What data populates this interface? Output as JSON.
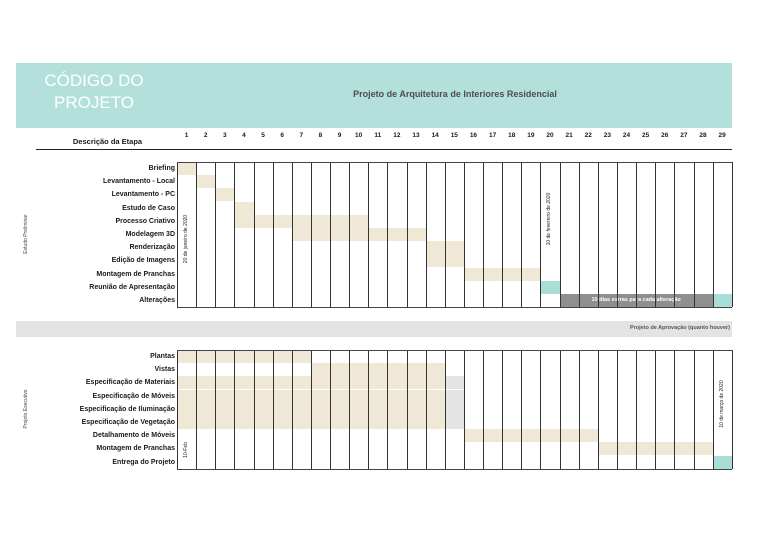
{
  "header": {
    "code_title": "CÓDIGO DO PROJETO",
    "project_title": "Projeto de Arquitetura de Interiores Residencial"
  },
  "columns": {
    "description_header": "Descrição da Etapa",
    "days": [
      "1",
      "2",
      "3",
      "4",
      "5",
      "6",
      "7",
      "8",
      "9",
      "10",
      "11",
      "12",
      "13",
      "14",
      "15",
      "16",
      "17",
      "18",
      "19",
      "20",
      "21",
      "22",
      "23",
      "24",
      "25",
      "26",
      "27",
      "28",
      "29"
    ]
  },
  "colors": {
    "header_bg": "#b3e0db",
    "task_bar": "#efe8d6",
    "milestone": "#a9ddd7",
    "extra_bar": "#8f8f8f",
    "approval_band": "#e3e3e3"
  },
  "phase1": {
    "label": "Estudo Preliminar",
    "start_note": "20 de janeiro de 2020",
    "mid_note": "10 de fevereiro de 2020",
    "extra_label": "10 dias extras para cada alteração",
    "tasks": [
      {
        "name": "Briefing",
        "start": 1,
        "end": 1
      },
      {
        "name": "Levantamento - Local",
        "start": 2,
        "end": 2
      },
      {
        "name": "Levantamento - PC",
        "start": 3,
        "end": 3
      },
      {
        "name": "Estudo de Caso",
        "start": 4,
        "end": 4
      },
      {
        "name": "Processo Criativo",
        "start": 4,
        "end": 10
      },
      {
        "name": "Modelagem 3D",
        "start": 7,
        "end": 13
      },
      {
        "name": "Renderização",
        "start": 14,
        "end": 15
      },
      {
        "name": "Edição de Imagens",
        "start": 14,
        "end": 15
      },
      {
        "name": "Montagem de Pranchas",
        "start": 16,
        "end": 19
      },
      {
        "name": "Reunião de Apresentação",
        "start": 20,
        "end": 20,
        "milestone": true
      },
      {
        "name": "Alterações",
        "start": 21,
        "end": 29,
        "extra": true
      }
    ]
  },
  "approval": {
    "label": "Projeto de Aprovação (quanto houver)"
  },
  "phase2": {
    "label": "Projeto Executivo",
    "start_note": "10-Feb",
    "end_note": "10 de março de 2020",
    "tasks": [
      {
        "name": "Plantas",
        "start": 1,
        "end": 7
      },
      {
        "name": "Vistas",
        "start": 8,
        "end": 14
      },
      {
        "name": "Especificação de Materiais",
        "start": 1,
        "end": 14,
        "grey_end": 15
      },
      {
        "name": "Especificação de Móveis",
        "start": 1,
        "end": 14,
        "grey_end": 15
      },
      {
        "name": "Especificação de Iluminação",
        "start": 1,
        "end": 14,
        "grey_end": 15
      },
      {
        "name": "Especificação de Vegetação",
        "start": 1,
        "end": 14,
        "grey_end": 15
      },
      {
        "name": "Detalhamento de Móveis",
        "start": 16,
        "end": 22
      },
      {
        "name": "Montagem de Pranchas",
        "start": 23,
        "end": 28
      },
      {
        "name": "Entrega do Projeto",
        "start": 29,
        "end": 29,
        "milestone": true
      }
    ]
  }
}
